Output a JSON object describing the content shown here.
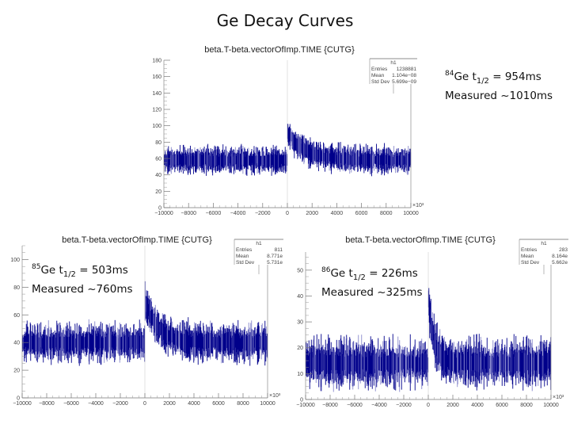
{
  "slide": {
    "title": "Ge Decay Curves"
  },
  "chart_data": [
    {
      "id": "ge84",
      "type": "bar",
      "title": "beta.T-beta.vectorOfImp.TIME {CUTG}",
      "xlim": [
        -10000,
        10000
      ],
      "ylim": [
        0,
        180
      ],
      "x_ticks": [
        "−10000",
        "−8000",
        "−6000",
        "−4000",
        "−2000",
        "0",
        "2000",
        "4000",
        "6000",
        "8000",
        "10000"
      ],
      "x_tick_values": [
        -10000,
        -8000,
        -6000,
        -4000,
        -2000,
        0,
        2000,
        4000,
        6000,
        8000,
        10000
      ],
      "y_ticks": [
        "0",
        "20",
        "40",
        "60",
        "80",
        "100",
        "120",
        "140",
        "160",
        "180"
      ],
      "y_tick_values": [
        0,
        20,
        40,
        60,
        80,
        100,
        120,
        140,
        160,
        180
      ],
      "x_multiplier": "×10³",
      "series_color": "#00008b",
      "baseline": 58,
      "noise": 11,
      "peak": 92,
      "decay_half_life": 1010,
      "stats": {
        "name": "h1",
        "entries_label": "Entries",
        "entries": "1238881",
        "mean_label": "Mean",
        "mean": "1.104e−08",
        "std_label": "Std Dev",
        "std": "5.699e−09"
      },
      "annotation": {
        "isotope_mass": "84",
        "isotope": "Ge",
        "t_symbol": "t",
        "t_sub": "1/2",
        "half_life": "= 954ms",
        "measured": "Measured ~1010ms"
      }
    },
    {
      "id": "ge85",
      "type": "bar",
      "title": "beta.T-beta.vectorOfImp.TIME {CUTG}",
      "xlim": [
        -10000,
        10000
      ],
      "ylim": [
        0,
        110
      ],
      "x_ticks": [
        "−10000",
        "−8000",
        "−6000",
        "−4000",
        "−2000",
        "0",
        "2000",
        "4000",
        "6000",
        "8000",
        "10000"
      ],
      "x_tick_values": [
        -10000,
        -8000,
        -6000,
        -4000,
        -2000,
        0,
        2000,
        4000,
        6000,
        8000,
        10000
      ],
      "y_ticks": [
        "0",
        "20",
        "40",
        "60",
        "80",
        "100"
      ],
      "y_tick_values": [
        0,
        20,
        40,
        60,
        80,
        100
      ],
      "x_multiplier": "×10³",
      "series_color": "#00008b",
      "baseline": 40,
      "noise": 9,
      "peak": 70,
      "decay_half_life": 760,
      "stats": {
        "name": "h1",
        "entries_label": "Entries",
        "entries": "811",
        "mean_label": "Mean",
        "mean": "8.771e",
        "std_label": "Std Dev",
        "std": "5.731e"
      },
      "annotation": {
        "isotope_mass": "85",
        "isotope": "Ge",
        "t_symbol": "t",
        "t_sub": "1/2",
        "half_life": "= 503ms",
        "measured": "Measured ~760ms"
      }
    },
    {
      "id": "ge86",
      "type": "bar",
      "title": "beta.T-beta.vectorOfImp.TIME {CUTG}",
      "xlim": [
        -10000,
        10000
      ],
      "ylim": [
        0,
        57
      ],
      "x_ticks": [
        "−10000",
        "−8000",
        "−6000",
        "−4000",
        "−2000",
        "0",
        "2000",
        "4000",
        "6000",
        "8000",
        "10000"
      ],
      "x_tick_values": [
        -10000,
        -8000,
        -6000,
        -4000,
        -2000,
        0,
        2000,
        4000,
        6000,
        8000,
        10000
      ],
      "y_ticks": [
        "0",
        "10",
        "20",
        "30",
        "40",
        "50"
      ],
      "y_tick_values": [
        0,
        10,
        20,
        30,
        40,
        50
      ],
      "x_multiplier": "×10³",
      "series_color": "#00008b",
      "baseline": 14,
      "noise": 6,
      "peak": 40,
      "decay_half_life": 325,
      "stats": {
        "name": "h1",
        "entries_label": "Entries",
        "entries": "283",
        "mean_label": "Mean",
        "mean": "8.164e",
        "std_label": "Std Dev",
        "std": "5.662e"
      },
      "annotation": {
        "isotope_mass": "86",
        "isotope": "Ge",
        "t_symbol": "t",
        "t_sub": "1/2",
        "half_life": "= 226ms",
        "measured": "Measured ~325ms"
      }
    }
  ]
}
